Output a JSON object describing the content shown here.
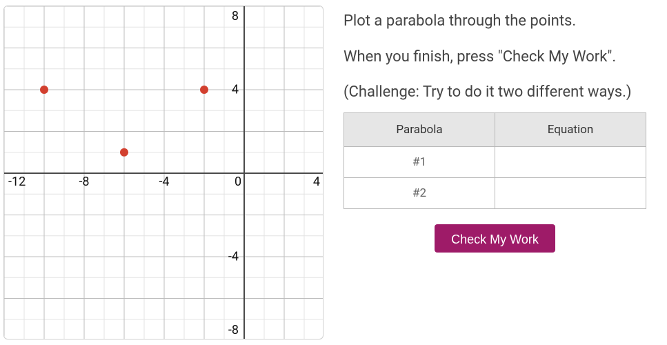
{
  "graph": {
    "xlim": [
      -12,
      4
    ],
    "ylim": [
      -8,
      8
    ],
    "gridStep": 2,
    "xticks": [
      -12,
      -8,
      -4,
      0,
      4
    ],
    "yticks": [
      -8,
      -4,
      4,
      8
    ],
    "gridColor": "#e3e3e3",
    "majorGridColor": "#bdbdbd",
    "axisColor": "#4a4a4a",
    "pointColor": "#d2402f",
    "points": [
      {
        "x": -10,
        "y": 4
      },
      {
        "x": -6,
        "y": 1
      },
      {
        "x": -2,
        "y": 4
      }
    ],
    "pointRadius": 6
  },
  "instructions": {
    "line1": "Plot a parabola through the points.",
    "line2": "When you finish, press \"Check My Work\".",
    "line3": "(Challenge: Try to do it two different ways.)"
  },
  "table": {
    "headers": {
      "col1": "Parabola",
      "col2": "Equation"
    },
    "rows": [
      {
        "label": "#1",
        "equation": ""
      },
      {
        "label": "#2",
        "equation": ""
      }
    ]
  },
  "button": {
    "label": "Check My Work",
    "bg": "#9e1b68"
  }
}
